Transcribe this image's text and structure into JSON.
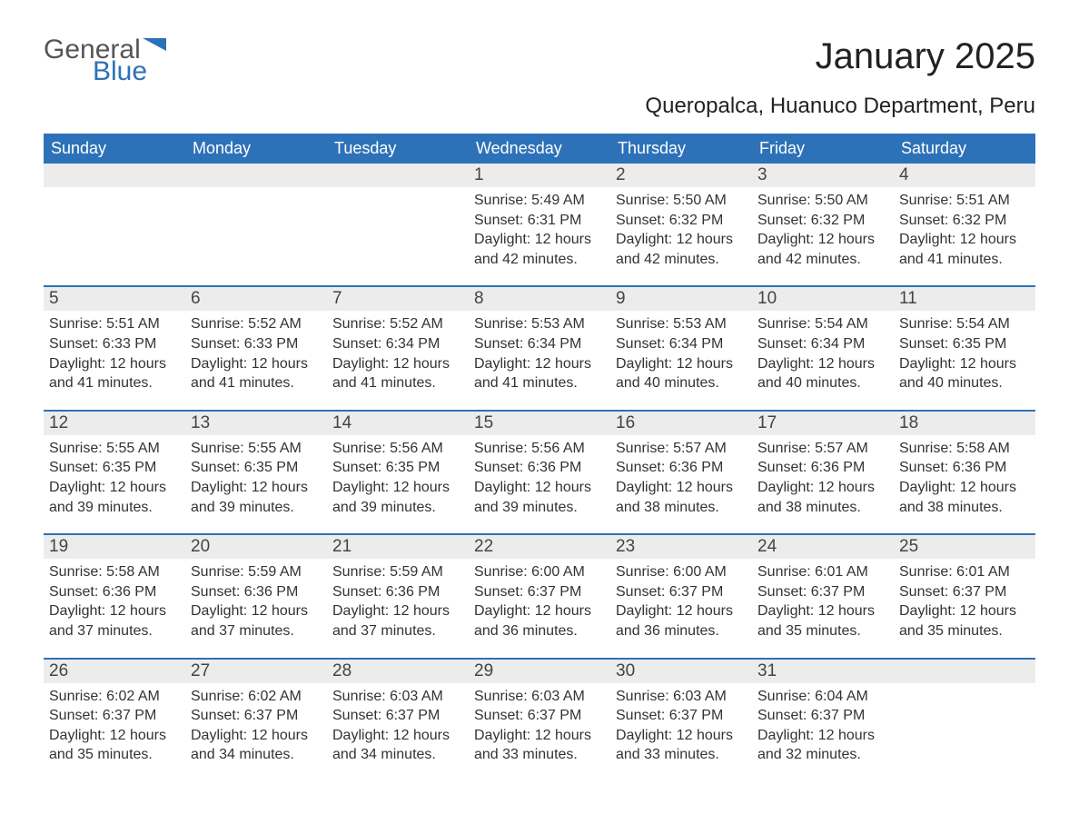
{
  "logo": {
    "text_general": "General",
    "text_blue": "Blue",
    "flag_color": "#2d72b8",
    "general_color": "#555555"
  },
  "header": {
    "month_title": "January 2025",
    "location": "Queropalca, Huanuco Department, Peru"
  },
  "colors": {
    "header_bg": "#2d72b8",
    "header_text": "#ffffff",
    "daynum_bg": "#ececec",
    "body_text": "#333333",
    "page_bg": "#ffffff",
    "week_border": "#2d72b8"
  },
  "typography": {
    "title_fontsize_pt": 30,
    "location_fontsize_pt": 18,
    "weekday_fontsize_pt": 14,
    "daynum_fontsize_pt": 14,
    "body_fontsize_pt": 12
  },
  "calendar": {
    "type": "calendar-table",
    "columns": 7,
    "weekdays": [
      "Sunday",
      "Monday",
      "Tuesday",
      "Wednesday",
      "Thursday",
      "Friday",
      "Saturday"
    ],
    "weeks": [
      [
        {
          "day": "",
          "sunrise": "",
          "sunset": "",
          "daylight1": "",
          "daylight2": ""
        },
        {
          "day": "",
          "sunrise": "",
          "sunset": "",
          "daylight1": "",
          "daylight2": ""
        },
        {
          "day": "",
          "sunrise": "",
          "sunset": "",
          "daylight1": "",
          "daylight2": ""
        },
        {
          "day": "1",
          "sunrise": "Sunrise: 5:49 AM",
          "sunset": "Sunset: 6:31 PM",
          "daylight1": "Daylight: 12 hours",
          "daylight2": "and 42 minutes."
        },
        {
          "day": "2",
          "sunrise": "Sunrise: 5:50 AM",
          "sunset": "Sunset: 6:32 PM",
          "daylight1": "Daylight: 12 hours",
          "daylight2": "and 42 minutes."
        },
        {
          "day": "3",
          "sunrise": "Sunrise: 5:50 AM",
          "sunset": "Sunset: 6:32 PM",
          "daylight1": "Daylight: 12 hours",
          "daylight2": "and 42 minutes."
        },
        {
          "day": "4",
          "sunrise": "Sunrise: 5:51 AM",
          "sunset": "Sunset: 6:32 PM",
          "daylight1": "Daylight: 12 hours",
          "daylight2": "and 41 minutes."
        }
      ],
      [
        {
          "day": "5",
          "sunrise": "Sunrise: 5:51 AM",
          "sunset": "Sunset: 6:33 PM",
          "daylight1": "Daylight: 12 hours",
          "daylight2": "and 41 minutes."
        },
        {
          "day": "6",
          "sunrise": "Sunrise: 5:52 AM",
          "sunset": "Sunset: 6:33 PM",
          "daylight1": "Daylight: 12 hours",
          "daylight2": "and 41 minutes."
        },
        {
          "day": "7",
          "sunrise": "Sunrise: 5:52 AM",
          "sunset": "Sunset: 6:34 PM",
          "daylight1": "Daylight: 12 hours",
          "daylight2": "and 41 minutes."
        },
        {
          "day": "8",
          "sunrise": "Sunrise: 5:53 AM",
          "sunset": "Sunset: 6:34 PM",
          "daylight1": "Daylight: 12 hours",
          "daylight2": "and 41 minutes."
        },
        {
          "day": "9",
          "sunrise": "Sunrise: 5:53 AM",
          "sunset": "Sunset: 6:34 PM",
          "daylight1": "Daylight: 12 hours",
          "daylight2": "and 40 minutes."
        },
        {
          "day": "10",
          "sunrise": "Sunrise: 5:54 AM",
          "sunset": "Sunset: 6:34 PM",
          "daylight1": "Daylight: 12 hours",
          "daylight2": "and 40 minutes."
        },
        {
          "day": "11",
          "sunrise": "Sunrise: 5:54 AM",
          "sunset": "Sunset: 6:35 PM",
          "daylight1": "Daylight: 12 hours",
          "daylight2": "and 40 minutes."
        }
      ],
      [
        {
          "day": "12",
          "sunrise": "Sunrise: 5:55 AM",
          "sunset": "Sunset: 6:35 PM",
          "daylight1": "Daylight: 12 hours",
          "daylight2": "and 39 minutes."
        },
        {
          "day": "13",
          "sunrise": "Sunrise: 5:55 AM",
          "sunset": "Sunset: 6:35 PM",
          "daylight1": "Daylight: 12 hours",
          "daylight2": "and 39 minutes."
        },
        {
          "day": "14",
          "sunrise": "Sunrise: 5:56 AM",
          "sunset": "Sunset: 6:35 PM",
          "daylight1": "Daylight: 12 hours",
          "daylight2": "and 39 minutes."
        },
        {
          "day": "15",
          "sunrise": "Sunrise: 5:56 AM",
          "sunset": "Sunset: 6:36 PM",
          "daylight1": "Daylight: 12 hours",
          "daylight2": "and 39 minutes."
        },
        {
          "day": "16",
          "sunrise": "Sunrise: 5:57 AM",
          "sunset": "Sunset: 6:36 PM",
          "daylight1": "Daylight: 12 hours",
          "daylight2": "and 38 minutes."
        },
        {
          "day": "17",
          "sunrise": "Sunrise: 5:57 AM",
          "sunset": "Sunset: 6:36 PM",
          "daylight1": "Daylight: 12 hours",
          "daylight2": "and 38 minutes."
        },
        {
          "day": "18",
          "sunrise": "Sunrise: 5:58 AM",
          "sunset": "Sunset: 6:36 PM",
          "daylight1": "Daylight: 12 hours",
          "daylight2": "and 38 minutes."
        }
      ],
      [
        {
          "day": "19",
          "sunrise": "Sunrise: 5:58 AM",
          "sunset": "Sunset: 6:36 PM",
          "daylight1": "Daylight: 12 hours",
          "daylight2": "and 37 minutes."
        },
        {
          "day": "20",
          "sunrise": "Sunrise: 5:59 AM",
          "sunset": "Sunset: 6:36 PM",
          "daylight1": "Daylight: 12 hours",
          "daylight2": "and 37 minutes."
        },
        {
          "day": "21",
          "sunrise": "Sunrise: 5:59 AM",
          "sunset": "Sunset: 6:36 PM",
          "daylight1": "Daylight: 12 hours",
          "daylight2": "and 37 minutes."
        },
        {
          "day": "22",
          "sunrise": "Sunrise: 6:00 AM",
          "sunset": "Sunset: 6:37 PM",
          "daylight1": "Daylight: 12 hours",
          "daylight2": "and 36 minutes."
        },
        {
          "day": "23",
          "sunrise": "Sunrise: 6:00 AM",
          "sunset": "Sunset: 6:37 PM",
          "daylight1": "Daylight: 12 hours",
          "daylight2": "and 36 minutes."
        },
        {
          "day": "24",
          "sunrise": "Sunrise: 6:01 AM",
          "sunset": "Sunset: 6:37 PM",
          "daylight1": "Daylight: 12 hours",
          "daylight2": "and 35 minutes."
        },
        {
          "day": "25",
          "sunrise": "Sunrise: 6:01 AM",
          "sunset": "Sunset: 6:37 PM",
          "daylight1": "Daylight: 12 hours",
          "daylight2": "and 35 minutes."
        }
      ],
      [
        {
          "day": "26",
          "sunrise": "Sunrise: 6:02 AM",
          "sunset": "Sunset: 6:37 PM",
          "daylight1": "Daylight: 12 hours",
          "daylight2": "and 35 minutes."
        },
        {
          "day": "27",
          "sunrise": "Sunrise: 6:02 AM",
          "sunset": "Sunset: 6:37 PM",
          "daylight1": "Daylight: 12 hours",
          "daylight2": "and 34 minutes."
        },
        {
          "day": "28",
          "sunrise": "Sunrise: 6:03 AM",
          "sunset": "Sunset: 6:37 PM",
          "daylight1": "Daylight: 12 hours",
          "daylight2": "and 34 minutes."
        },
        {
          "day": "29",
          "sunrise": "Sunrise: 6:03 AM",
          "sunset": "Sunset: 6:37 PM",
          "daylight1": "Daylight: 12 hours",
          "daylight2": "and 33 minutes."
        },
        {
          "day": "30",
          "sunrise": "Sunrise: 6:03 AM",
          "sunset": "Sunset: 6:37 PM",
          "daylight1": "Daylight: 12 hours",
          "daylight2": "and 33 minutes."
        },
        {
          "day": "31",
          "sunrise": "Sunrise: 6:04 AM",
          "sunset": "Sunset: 6:37 PM",
          "daylight1": "Daylight: 12 hours",
          "daylight2": "and 32 minutes."
        },
        {
          "day": "",
          "sunrise": "",
          "sunset": "",
          "daylight1": "",
          "daylight2": ""
        }
      ]
    ]
  }
}
